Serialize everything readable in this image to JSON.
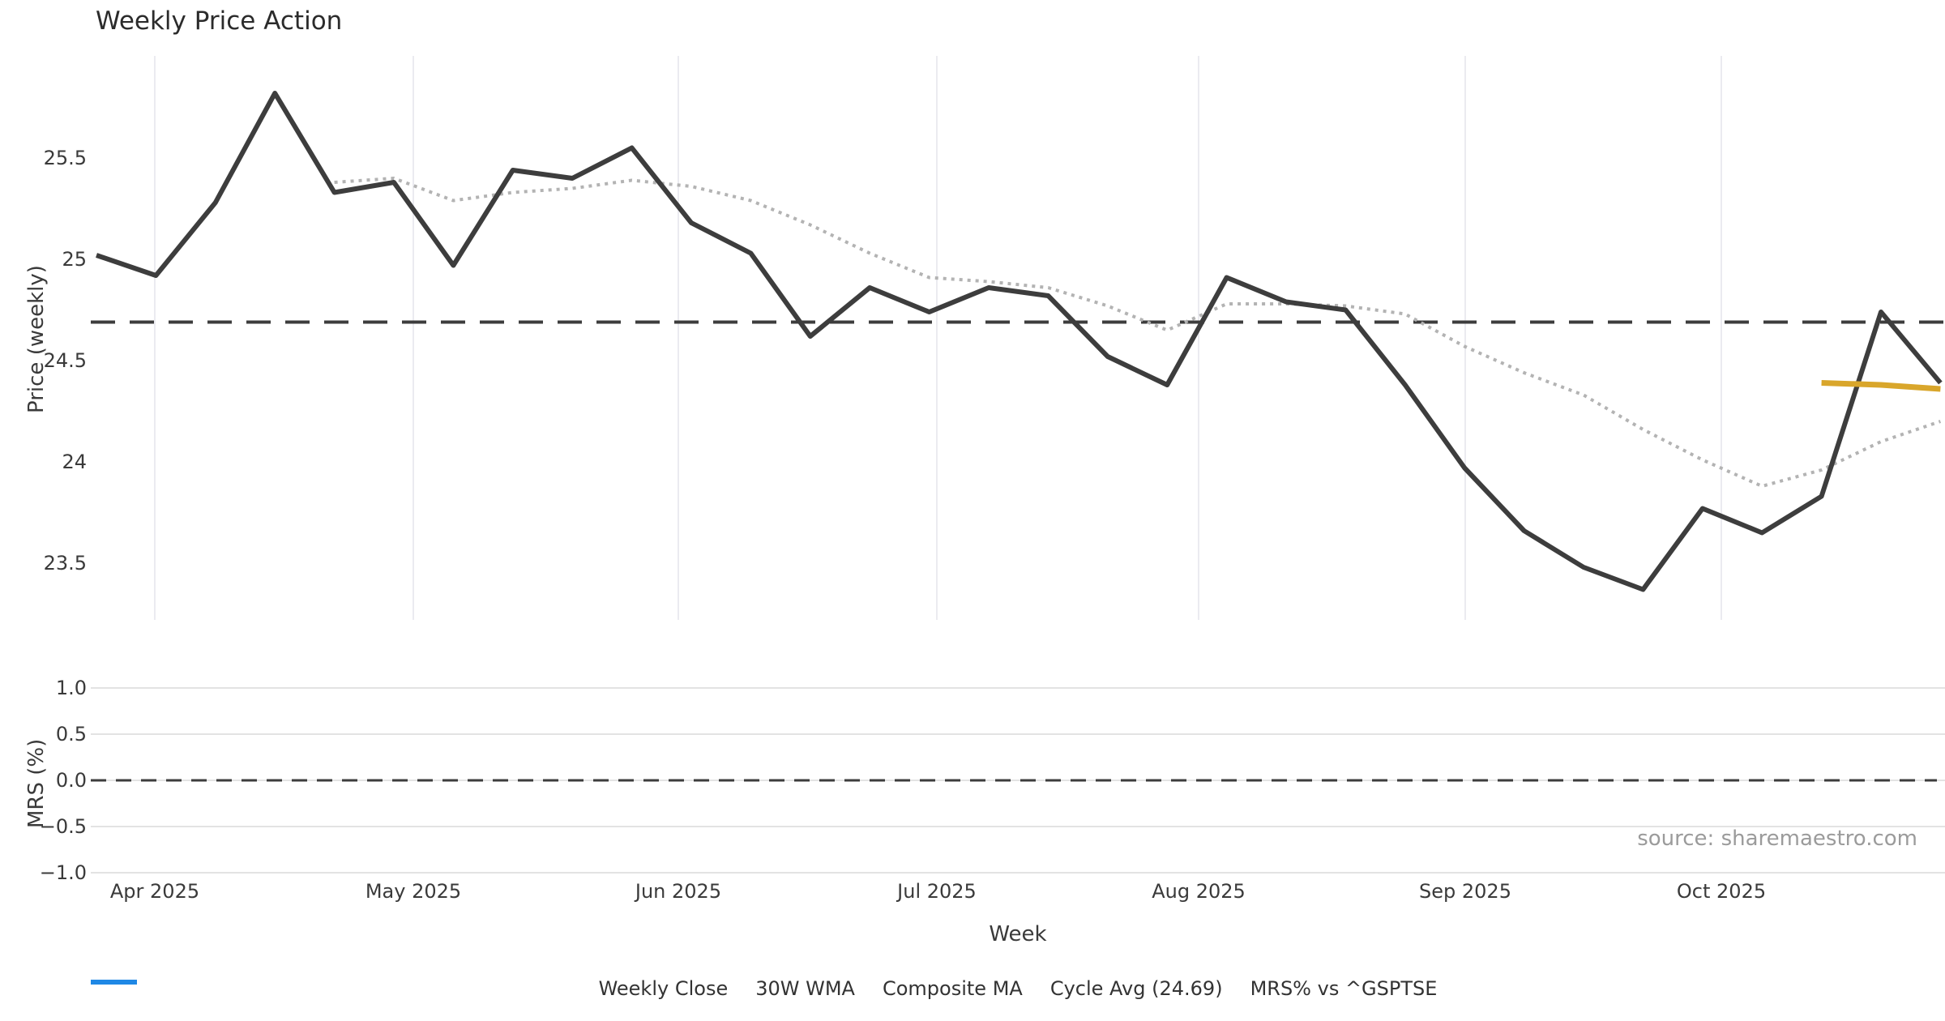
{
  "title": "Weekly Price Action",
  "source_note": "source: sharemaestro.com",
  "axes": {
    "price": {
      "label": "Price (weekly)",
      "ticks": [
        {
          "label": "25.5",
          "value": 25.5
        },
        {
          "label": "25",
          "value": 25.0
        },
        {
          "label": "24.5",
          "value": 24.5
        },
        {
          "label": "24",
          "value": 24.0
        },
        {
          "label": "23.5",
          "value": 23.5
        }
      ]
    },
    "mrs": {
      "label": "MRS (%)",
      "ticks": [
        {
          "label": "1.0",
          "value": 1.0
        },
        {
          "label": "0.5",
          "value": 0.5
        },
        {
          "label": "0.0",
          "value": 0.0
        },
        {
          "label": "−0.5",
          "value": -0.5
        },
        {
          "label": "−1.0",
          "value": -1.0
        }
      ]
    },
    "x": {
      "label": "Week",
      "ticks": [
        {
          "label": "Apr 2025"
        },
        {
          "label": "May 2025"
        },
        {
          "label": "Jun 2025"
        },
        {
          "label": "Jul 2025"
        },
        {
          "label": "Aug 2025"
        },
        {
          "label": "Sep 2025"
        },
        {
          "label": "Oct 2025"
        }
      ]
    }
  },
  "legend": [
    {
      "label": "Weekly Close",
      "series": "weekly_close"
    },
    {
      "label": "30W WMA",
      "series": "wma_30w"
    },
    {
      "label": "Composite MA",
      "series": "composite_ma"
    },
    {
      "label": "Cycle Avg (24.69)",
      "series": "cycle_avg"
    },
    {
      "label": "MRS% vs ^GSPTSE",
      "series": "mrs"
    }
  ],
  "colors": {
    "weekly_close": "#3d3d3d",
    "wma_30w": "#d9a62b",
    "composite_ma": "#b3b3b3",
    "cycle_avg": "#3d3d3d",
    "mrs": "#1f88e5",
    "gridline": "#ebebf0",
    "text": "#3a3a3a",
    "muted_text": "#9b9b9b"
  },
  "chart_data": {
    "type": "line",
    "title": "Weekly Price Action",
    "x_unit": "week (weekly points, Apr 2025 – Nov 2025)",
    "x_tick_labels": [
      "Apr 2025",
      "May 2025",
      "Jun 2025",
      "Jul 2025",
      "Aug 2025",
      "Sep 2025",
      "Oct 2025"
    ],
    "grid": {
      "price_panel": "vertical month gridlines",
      "mrs_panel": "horizontal tick gridlines"
    },
    "legend_position": "bottom center",
    "panels": [
      {
        "name": "price",
        "ylabel": "Price (weekly)",
        "ylim": [
          23.2,
          25.95
        ],
        "yticks": [
          25.5,
          25.0,
          24.5,
          24.0,
          23.5
        ],
        "series": [
          {
            "name": "Cycle Avg",
            "style": "dashed",
            "color": "#3d3d3d",
            "constant": 24.69
          },
          {
            "name": "Composite MA",
            "style": "dotted",
            "color": "#b3b3b3",
            "week_start": 4,
            "values": [
              25.38,
              25.4,
              25.29,
              25.33,
              25.35,
              25.39,
              25.36,
              25.29,
              25.17,
              25.03,
              24.91,
              24.89,
              24.86,
              24.77,
              24.65,
              24.78,
              24.78,
              24.77,
              24.73,
              24.57,
              24.44,
              24.33,
              24.16,
              24.01,
              23.88,
              23.96,
              24.1,
              24.2
            ]
          },
          {
            "name": "Weekly Close",
            "style": "solid",
            "color": "#3d3d3d",
            "week_start": 0,
            "values": [
              25.02,
              24.92,
              25.28,
              25.82,
              25.33,
              25.38,
              24.97,
              25.44,
              25.4,
              25.55,
              25.18,
              25.03,
              24.62,
              24.86,
              24.74,
              24.86,
              24.82,
              24.52,
              24.38,
              24.91,
              24.79,
              24.75,
              24.38,
              23.97,
              23.66,
              23.48,
              23.37,
              23.77,
              23.65,
              23.83,
              24.74,
              24.39
            ]
          },
          {
            "name": "30W WMA",
            "style": "solid",
            "color": "#d9a62b",
            "week_start": 29,
            "values": [
              24.39,
              24.38,
              24.36
            ]
          }
        ]
      },
      {
        "name": "mrs",
        "ylabel": "MRS (%)",
        "ylim": [
          -1.15,
          1.15
        ],
        "yticks": [
          1.0,
          0.5,
          0.0,
          -0.5,
          -1.0
        ],
        "series": [
          {
            "name": "Zero line",
            "style": "dashed",
            "color": "#3d3d3d",
            "constant": 0
          },
          {
            "name": "MRS% vs ^GSPTSE",
            "style": "solid",
            "color": "#1f88e5",
            "week_start": 0,
            "values": []
          }
        ]
      }
    ]
  }
}
